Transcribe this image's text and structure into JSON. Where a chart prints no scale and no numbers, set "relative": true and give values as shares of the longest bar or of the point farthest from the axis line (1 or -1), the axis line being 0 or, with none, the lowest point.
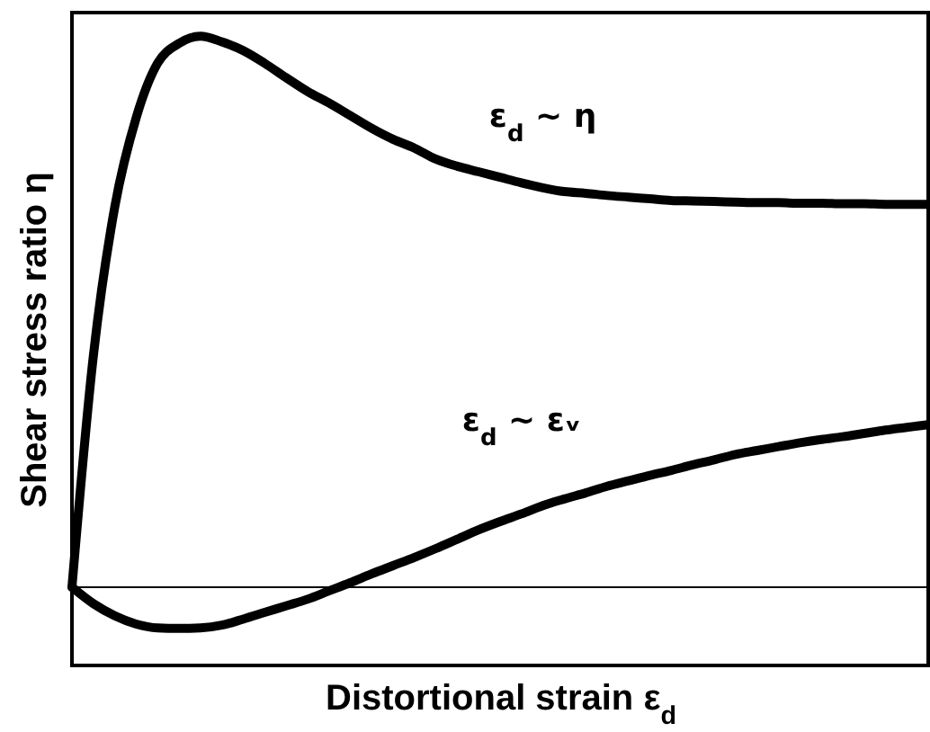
{
  "chart_data": {
    "type": "line",
    "relative": true,
    "xlabel": "Distortional strain ε$_{d}$",
    "ylabel": "Shear stress ratio η",
    "categories": [
      null,
      null,
      null,
      null,
      null,
      null,
      null,
      null,
      null,
      null,
      null,
      null,
      null,
      null,
      null,
      null,
      null,
      null,
      null,
      null,
      null,
      null,
      null,
      null,
      null,
      null,
      null,
      null,
      null,
      null,
      null,
      null,
      null,
      null,
      null,
      null,
      null,
      null,
      null,
      null,
      null
    ],
    "series": [
      {
        "name": "ε$_{d}$ ~ η",
        "color": "#000000",
        "values": [
          0,
          0.42,
          0.69,
          0.852,
          0.951,
          0.987,
          1,
          0.99,
          0.974,
          0.951,
          0.925,
          0.9,
          0.879,
          0.856,
          0.833,
          0.813,
          0.797,
          0.777,
          0.764,
          0.754,
          0.744,
          0.734,
          0.725,
          0.718,
          0.715,
          0.711,
          0.708,
          0.705,
          0.702,
          0.701,
          0.7,
          0.699,
          0.698,
          0.698,
          0.697,
          0.697,
          0.696,
          0.696,
          0.695,
          0.695,
          0.695
        ]
      },
      {
        "name": "ε$_{d}$ ~ εᵥ",
        "color": "#000000",
        "values": [
          0,
          -0.03,
          -0.052,
          -0.067,
          -0.074,
          -0.075,
          -0.074,
          -0.069,
          -0.058,
          -0.046,
          -0.034,
          -0.022,
          -0.007,
          0.008,
          0.024,
          0.039,
          0.054,
          0.07,
          0.087,
          0.104,
          0.119,
          0.133,
          0.148,
          0.16,
          0.171,
          0.183,
          0.193,
          0.203,
          0.212,
          0.222,
          0.231,
          0.241,
          0.248,
          0.255,
          0.262,
          0.268,
          0.273,
          0.279,
          0.285,
          0.29,
          0.295
        ]
      }
    ],
    "ref_lines": [
      {
        "axis": "y",
        "value": 0,
        "color": "#000000"
      }
    ]
  }
}
